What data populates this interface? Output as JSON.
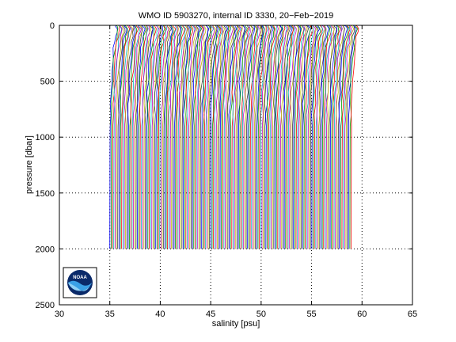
{
  "chart_data": {
    "type": "line",
    "title": "WMO ID 5903270, internal ID 3330, 20−Feb−2019",
    "xlabel": "salinity [psu]",
    "ylabel": "pressure [dbar]",
    "xlim": [
      30,
      65
    ],
    "ylim": [
      0,
      2500
    ],
    "y_reversed": true,
    "grid": true,
    "x_ticks": [
      30,
      35,
      40,
      45,
      50,
      55,
      60,
      65
    ],
    "y_ticks": [
      0,
      500,
      1000,
      1500,
      2000,
      2500
    ],
    "profile_count": 185,
    "offset_step": 0.13,
    "first_profile_deep_value": 35.0,
    "max_pressure": 2000,
    "profile_shape": {
      "pressure": [
        0,
        10,
        30,
        60,
        100,
        150,
        200,
        300,
        400,
        500,
        600,
        700,
        800,
        900,
        1000,
        1200,
        1400,
        1600,
        1800,
        2000
      ],
      "salinity_offset": [
        0.55,
        0.6,
        0.72,
        0.65,
        0.55,
        0.45,
        0.38,
        0.28,
        0.2,
        0.15,
        0.1,
        0.07,
        0.05,
        0.04,
        0.03,
        0.02,
        0.015,
        0.01,
        0.005,
        0.0
      ]
    },
    "colors": [
      "#0000ff",
      "#00a000",
      "#ff0000",
      "#00bfbf",
      "#bf00bf",
      "#bfbf00",
      "#404040"
    ]
  },
  "logo": {
    "name": "noaa-logo",
    "text": "NOAA"
  }
}
